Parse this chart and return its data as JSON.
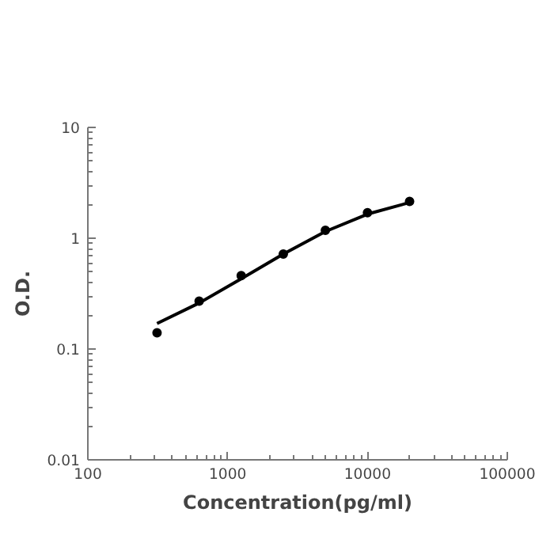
{
  "chart_data": {
    "type": "scatter",
    "xlabel": "Concentration(pg/ml)",
    "ylabel": "O.D.",
    "log": "xy",
    "grid": false,
    "xlim": [
      100,
      100000
    ],
    "ylim": [
      0.01,
      10
    ],
    "xticks": [
      100,
      1000,
      10000,
      100000
    ],
    "yticks": [
      0.01,
      0.1,
      1,
      10
    ],
    "series": [
      {
        "marker": "circle",
        "color": "#000000",
        "x": [
          312.5,
          625,
          1250,
          2500,
          5000,
          10000,
          20000
        ],
        "values": [
          0.14,
          0.27,
          0.46,
          0.72,
          1.18,
          1.7,
          2.15
        ]
      },
      {
        "type": "line",
        "marker": "none",
        "line_style": "solid",
        "color": "#000000",
        "x": [
          312.5,
          625,
          1250,
          2500,
          5000,
          10000,
          20000
        ],
        "values": [
          0.17,
          0.26,
          0.43,
          0.72,
          1.15,
          1.65,
          2.1
        ]
      }
    ]
  }
}
